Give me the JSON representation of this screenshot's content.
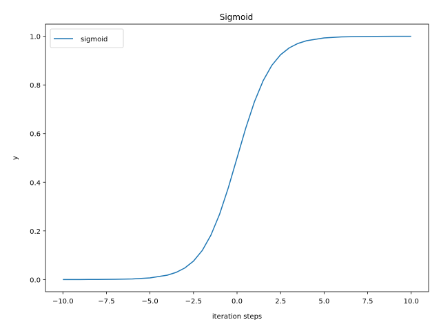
{
  "chart_data": {
    "type": "line",
    "title": "Sigmoid",
    "xlabel": "iteration steps",
    "ylabel": "y",
    "xlim": [
      -11.0,
      11.0
    ],
    "ylim": [
      -0.05,
      1.05
    ],
    "xticks": [
      -10.0,
      -7.5,
      -5.0,
      -2.5,
      0.0,
      2.5,
      5.0,
      7.5,
      10.0
    ],
    "xtick_labels": [
      "−10.0",
      "−7.5",
      "−5.0",
      "−2.5",
      "0.0",
      "2.5",
      "5.0",
      "7.5",
      "10.0"
    ],
    "yticks": [
      0.0,
      0.2,
      0.4,
      0.6,
      0.8,
      1.0
    ],
    "ytick_labels": [
      "0.0",
      "0.2",
      "0.4",
      "0.6",
      "0.8",
      "1.0"
    ],
    "grid": false,
    "legend": {
      "position": "top-left"
    },
    "series": [
      {
        "name": "sigmoid",
        "color": "#1f77b4",
        "x": [
          -10,
          -9,
          -8,
          -7,
          -6,
          -5,
          -4,
          -3.5,
          -3,
          -2.5,
          -2,
          -1.5,
          -1,
          -0.5,
          0,
          0.5,
          1,
          1.5,
          2,
          2.5,
          3,
          3.5,
          4,
          5,
          6,
          7,
          8,
          9,
          10
        ],
        "y": [
          4.54e-05,
          0.0001234,
          0.0003354,
          0.0009111,
          0.0024726,
          0.0066929,
          0.0179862,
          0.0293122,
          0.0474259,
          0.0758582,
          0.1192029,
          0.1824255,
          0.2689414,
          0.3775407,
          0.5,
          0.6224593,
          0.7310586,
          0.8175745,
          0.8807971,
          0.9241418,
          0.9525741,
          0.9706878,
          0.9820138,
          0.9933071,
          0.9975274,
          0.9990889,
          0.9996646,
          0.9998766,
          0.9999546
        ]
      }
    ]
  }
}
